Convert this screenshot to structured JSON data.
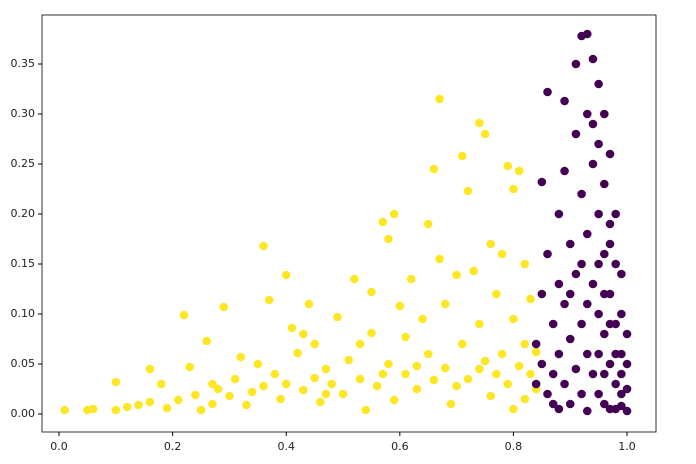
{
  "chart_data": {
    "type": "scatter",
    "xlim": [
      -0.03,
      1.051
    ],
    "ylim": [
      -0.018,
      0.399
    ],
    "xticks": [
      {
        "value": 0,
        "label": "0.0"
      },
      0.2,
      0.4,
      0.6,
      0.8,
      {
        "value": 1,
        "label": "1.0"
      }
    ],
    "yticks": [
      {
        "value": 0,
        "label": "0.00"
      },
      0.05,
      {
        "value": 0.1,
        "label": "0.10"
      },
      0.15,
      {
        "value": 0.2,
        "label": "0.20"
      },
      0.25,
      {
        "value": 0.3,
        "label": "0.30"
      },
      0.35
    ],
    "series": [
      {
        "color": "#fde725",
        "x": [
          0.01,
          0.05,
          0.06,
          0.1,
          0.1,
          0.12,
          0.14,
          0.16,
          0.16,
          0.18,
          0.19,
          0.21,
          0.22,
          0.23,
          0.24,
          0.25,
          0.26,
          0.27,
          0.28,
          0.29,
          0.3,
          0.31,
          0.32,
          0.33,
          0.34,
          0.36,
          0.36,
          0.37,
          0.38,
          0.39,
          0.4,
          0.4,
          0.41,
          0.42,
          0.43,
          0.44,
          0.45,
          0.45,
          0.46,
          0.47,
          0.48,
          0.49,
          0.5,
          0.51,
          0.52,
          0.53,
          0.54,
          0.55,
          0.55,
          0.56,
          0.57,
          0.58,
          0.58,
          0.59,
          0.59,
          0.6,
          0.61,
          0.61,
          0.62,
          0.63,
          0.64,
          0.65,
          0.65,
          0.66,
          0.66,
          0.67,
          0.67,
          0.68,
          0.68,
          0.69,
          0.7,
          0.71,
          0.71,
          0.72,
          0.72,
          0.73,
          0.74,
          0.74,
          0.75,
          0.75,
          0.76,
          0.76,
          0.77,
          0.77,
          0.78,
          0.78,
          0.79,
          0.79,
          0.8,
          0.8,
          0.8,
          0.81,
          0.81,
          0.82,
          0.82,
          0.82,
          0.83,
          0.83,
          0.84,
          0.84,
          0.35,
          0.27,
          0.53,
          0.47,
          0.63,
          0.7,
          0.74,
          0.57,
          0.43
        ],
        "values": [
          0.004,
          0.004,
          0.005,
          0.032,
          0.004,
          0.007,
          0.009,
          0.045,
          0.012,
          0.03,
          0.006,
          0.014,
          0.099,
          0.047,
          0.019,
          0.004,
          0.073,
          0.01,
          0.025,
          0.107,
          0.018,
          0.035,
          0.057,
          0.009,
          0.022,
          0.168,
          0.028,
          0.114,
          0.04,
          0.015,
          0.139,
          0.03,
          0.086,
          0.061,
          0.024,
          0.11,
          0.07,
          0.036,
          0.012,
          0.045,
          0.03,
          0.097,
          0.02,
          0.054,
          0.135,
          0.035,
          0.004,
          0.122,
          0.081,
          0.028,
          0.192,
          0.175,
          0.05,
          0.2,
          0.014,
          0.108,
          0.04,
          0.077,
          0.135,
          0.025,
          0.095,
          0.19,
          0.06,
          0.245,
          0.034,
          0.155,
          0.315,
          0.11,
          0.046,
          0.01,
          0.139,
          0.258,
          0.07,
          0.223,
          0.035,
          0.143,
          0.291,
          0.09,
          0.053,
          0.28,
          0.17,
          0.018,
          0.12,
          0.04,
          0.06,
          0.16,
          0.248,
          0.03,
          0.225,
          0.095,
          0.005,
          0.243,
          0.048,
          0.15,
          0.07,
          0.015,
          0.115,
          0.04,
          0.062,
          0.025,
          0.05,
          0.03,
          0.07,
          0.02,
          0.048,
          0.028,
          0.045,
          0.04,
          0.08
        ]
      },
      {
        "color": "#440154",
        "x": [
          0.84,
          0.84,
          0.85,
          0.85,
          0.85,
          0.86,
          0.86,
          0.86,
          0.87,
          0.87,
          0.88,
          0.88,
          0.88,
          0.89,
          0.89,
          0.89,
          0.89,
          0.9,
          0.9,
          0.9,
          0.91,
          0.91,
          0.91,
          0.91,
          0.92,
          0.92,
          0.92,
          0.92,
          0.93,
          0.93,
          0.93,
          0.93,
          0.93,
          0.94,
          0.94,
          0.94,
          0.94,
          0.95,
          0.95,
          0.95,
          0.95,
          0.95,
          0.96,
          0.96,
          0.96,
          0.96,
          0.96,
          0.97,
          0.97,
          0.97,
          0.97,
          0.97,
          0.98,
          0.98,
          0.98,
          0.98,
          0.99,
          0.99,
          0.99,
          0.99,
          1.0,
          1.0,
          1.0,
          1.0,
          0.94,
          0.95,
          0.96,
          0.97,
          0.98,
          0.99,
          0.92,
          0.9,
          0.88,
          0.87,
          0.93,
          0.96,
          0.98,
          0.99,
          0.95,
          0.97
        ],
        "values": [
          0.07,
          0.03,
          0.232,
          0.12,
          0.05,
          0.322,
          0.16,
          0.02,
          0.09,
          0.04,
          0.2,
          0.06,
          0.005,
          0.313,
          0.243,
          0.11,
          0.03,
          0.17,
          0.075,
          0.01,
          0.35,
          0.28,
          0.14,
          0.045,
          0.378,
          0.22,
          0.09,
          0.02,
          0.38,
          0.3,
          0.18,
          0.06,
          0.003,
          0.355,
          0.25,
          0.13,
          0.04,
          0.33,
          0.27,
          0.2,
          0.1,
          0.02,
          0.3,
          0.23,
          0.16,
          0.08,
          0.01,
          0.26,
          0.19,
          0.12,
          0.05,
          0.005,
          0.2,
          0.15,
          0.09,
          0.03,
          0.14,
          0.1,
          0.06,
          0.02,
          0.08,
          0.05,
          0.025,
          0.003,
          0.29,
          0.15,
          0.12,
          0.09,
          0.06,
          0.04,
          0.15,
          0.12,
          0.13,
          0.01,
          0.11,
          0.04,
          0.005,
          0.008,
          0.06,
          0.17
        ]
      }
    ]
  }
}
